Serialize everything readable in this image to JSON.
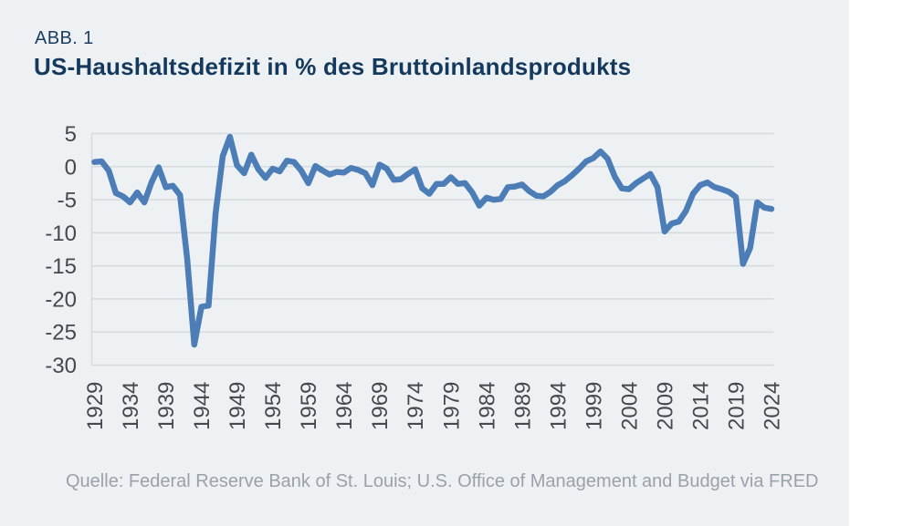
{
  "header": {
    "label": "ABB. 1",
    "title": "US-Haushaltsdefizit in % des Bruttoinlandsprodukts"
  },
  "footer": {
    "source": "Quelle: Federal Reserve Bank of St. Louis; U.S. Office of Management and Budget via FRED"
  },
  "colors": {
    "page_bg": "#ffffff",
    "panel_bg": "#edf1f4",
    "line": "#4d7db6",
    "grid": "#d5dadd",
    "title": "#14395c",
    "tick": "#45494d",
    "source": "#9aa1a8"
  },
  "chart_data": {
    "type": "line",
    "title": "US-Haushaltsdefizit in % des Bruttoinlandsprodukts",
    "series_name": "US-Haushaltsdefizit in % des BIP",
    "xlabel": "",
    "ylabel": "",
    "unit": "% des BIP",
    "grid": true,
    "legend": false,
    "start_year": 1929,
    "end_year": 2024,
    "ylim": [
      -30,
      5
    ],
    "yticks": [
      5,
      0,
      -5,
      -10,
      -15,
      -20,
      -25,
      -30
    ],
    "xticks": [
      1929,
      1934,
      1939,
      1944,
      1949,
      1954,
      1959,
      1964,
      1969,
      1974,
      1979,
      1984,
      1989,
      1994,
      1999,
      2004,
      2009,
      2014,
      2019,
      2024
    ],
    "values": [
      0.7,
      0.8,
      -0.6,
      -4.0,
      -4.5,
      -5.4,
      -3.9,
      -5.4,
      -2.4,
      -0.1,
      -3.1,
      -2.9,
      -4.3,
      -13.9,
      -26.9,
      -21.2,
      -21.0,
      -7.0,
      1.6,
      4.5,
      0.2,
      -1.0,
      1.8,
      -0.4,
      -1.7,
      -0.3,
      -0.7,
      0.9,
      0.7,
      -0.6,
      -2.5,
      0.1,
      -0.6,
      -1.2,
      -0.8,
      -0.9,
      -0.2,
      -0.5,
      -1.0,
      -2.8,
      0.3,
      -0.3,
      -2.0,
      -1.9,
      -1.1,
      -0.4,
      -3.3,
      -4.1,
      -2.6,
      -2.6,
      -1.6,
      -2.6,
      -2.5,
      -3.9,
      -5.9,
      -4.7,
      -5.0,
      -4.9,
      -3.1,
      -3.0,
      -2.7,
      -3.7,
      -4.4,
      -4.5,
      -3.8,
      -2.8,
      -2.2,
      -1.3,
      -0.3,
      0.8,
      1.3,
      2.3,
      1.2,
      -1.5,
      -3.3,
      -3.4,
      -2.5,
      -1.8,
      -1.1,
      -3.1,
      -9.8,
      -8.6,
      -8.3,
      -6.7,
      -4.1,
      -2.8,
      -2.4,
      -3.1,
      -3.4,
      -3.8,
      -4.6,
      -14.7,
      -12.3,
      -5.4,
      -6.2,
      -6.4
    ]
  }
}
